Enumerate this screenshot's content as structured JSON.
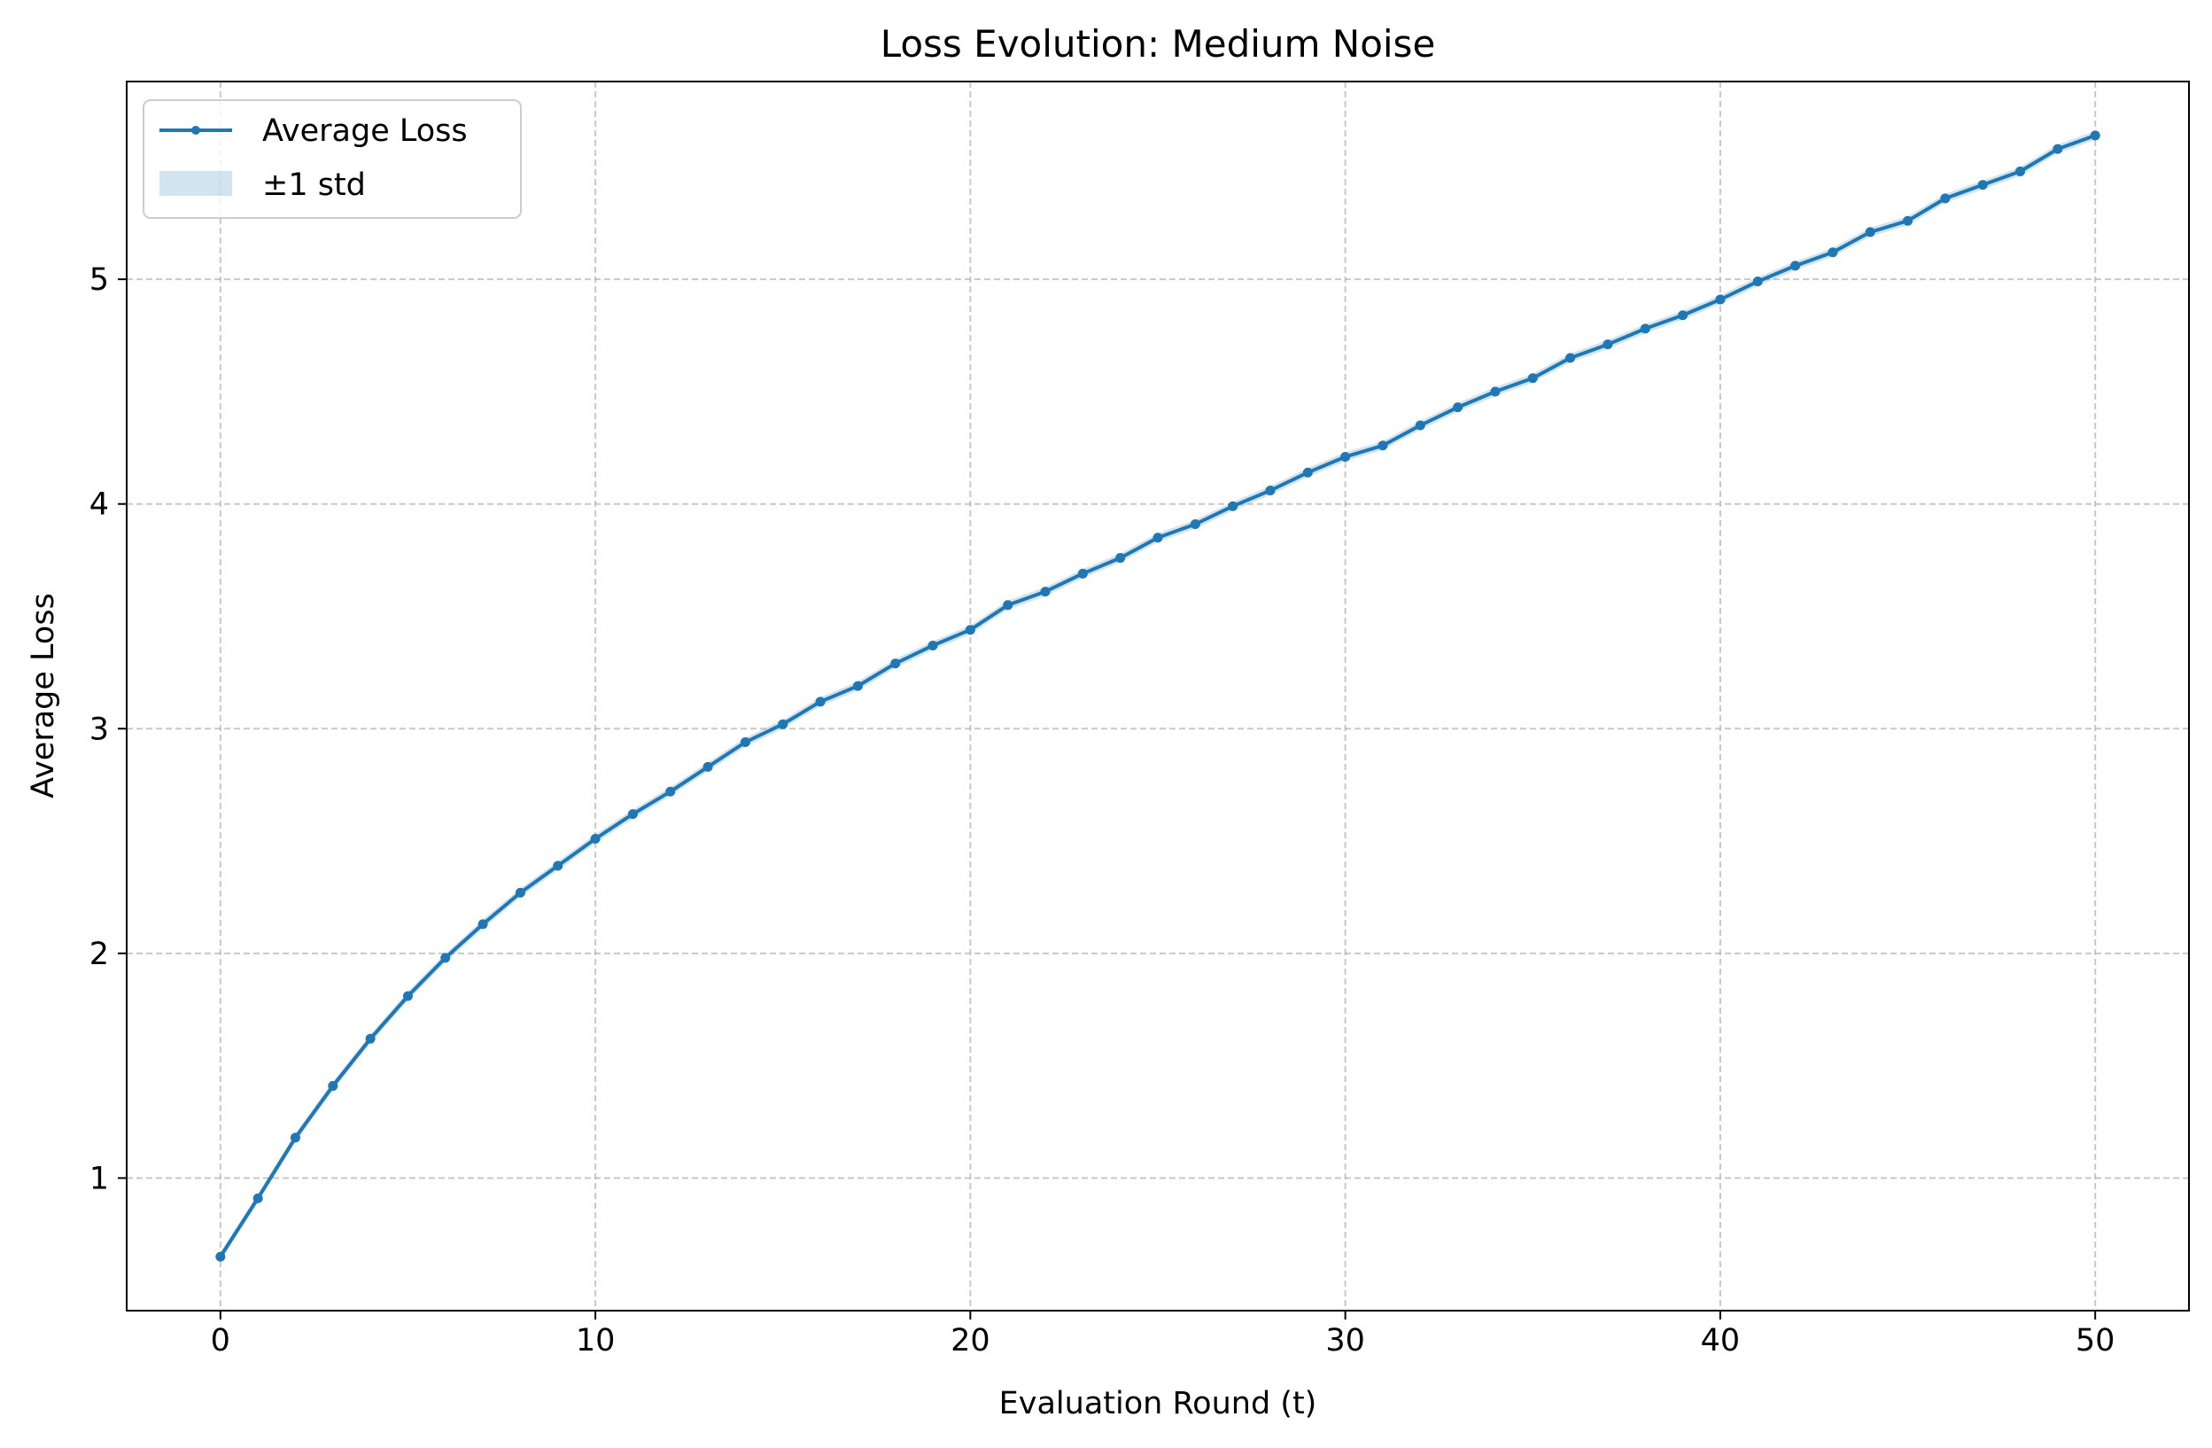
{
  "chart_data": {
    "type": "line",
    "title": "Loss Evolution: Medium Noise",
    "xlabel": "Evaluation Round (t)",
    "ylabel": "Average Loss",
    "xlim": [
      -2.5,
      52.5
    ],
    "ylim": [
      0.41,
      5.88
    ],
    "xticks": [
      0,
      10,
      20,
      30,
      40,
      50
    ],
    "yticks": [
      1,
      2,
      3,
      4,
      5
    ],
    "grid": true,
    "grid_style": "dashed",
    "legend_position": "upper left",
    "colors": {
      "line": "#1f77b4",
      "band": "#1f77b4",
      "grid": "#b0b0b0"
    },
    "x": [
      0,
      1,
      2,
      3,
      4,
      5,
      6,
      7,
      8,
      9,
      10,
      11,
      12,
      13,
      14,
      15,
      16,
      17,
      18,
      19,
      20,
      21,
      22,
      23,
      24,
      25,
      26,
      27,
      28,
      29,
      30,
      31,
      32,
      33,
      34,
      35,
      36,
      37,
      38,
      39,
      40,
      41,
      42,
      43,
      44,
      45,
      46,
      47,
      48,
      49,
      50
    ],
    "series": [
      {
        "name": "Average Loss",
        "values": [
          0.65,
          0.91,
          1.18,
          1.41,
          1.62,
          1.81,
          1.98,
          2.13,
          2.27,
          2.39,
          2.51,
          2.62,
          2.72,
          2.83,
          2.94,
          3.02,
          3.12,
          3.19,
          3.29,
          3.37,
          3.44,
          3.55,
          3.61,
          3.69,
          3.76,
          3.85,
          3.91,
          3.99,
          4.06,
          4.14,
          4.21,
          4.26,
          4.35,
          4.43,
          4.5,
          4.56,
          4.65,
          4.71,
          4.78,
          4.84,
          4.91,
          4.99,
          5.06,
          5.12,
          5.21,
          5.26,
          5.36,
          5.42,
          5.48,
          5.58,
          5.64
        ]
      }
    ],
    "band": {
      "name": "±1 std",
      "std": 0.02
    }
  }
}
